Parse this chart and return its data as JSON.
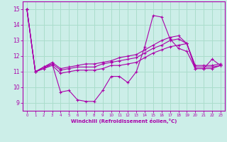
{
  "xlabel": "Windchill (Refroidissement éolien,°C)",
  "bg_color": "#cceee8",
  "grid_color": "#aaddcc",
  "line_color": "#aa00aa",
  "spine_color": "#aa00aa",
  "xlim": [
    -0.5,
    23.5
  ],
  "ylim": [
    8.5,
    15.5
  ],
  "yticks": [
    9,
    10,
    11,
    12,
    13,
    14,
    15
  ],
  "xticks": [
    0,
    1,
    2,
    3,
    4,
    5,
    6,
    7,
    8,
    9,
    10,
    11,
    12,
    13,
    14,
    15,
    16,
    17,
    18,
    19,
    20,
    21,
    22,
    23
  ],
  "series": [
    [
      15.0,
      11.0,
      11.2,
      11.5,
      9.7,
      9.8,
      9.2,
      9.1,
      9.1,
      9.8,
      10.7,
      10.7,
      10.3,
      11.0,
      12.6,
      14.6,
      14.5,
      13.1,
      12.5,
      12.3,
      11.2,
      11.2,
      11.8,
      11.4
    ],
    [
      15.0,
      11.0,
      11.2,
      11.4,
      10.9,
      11.0,
      11.1,
      11.1,
      11.1,
      11.2,
      11.4,
      11.4,
      11.5,
      11.6,
      11.9,
      12.2,
      12.4,
      12.6,
      12.7,
      12.8,
      11.2,
      11.2,
      11.2,
      11.4
    ],
    [
      15.0,
      11.0,
      11.3,
      11.5,
      11.1,
      11.2,
      11.3,
      11.3,
      11.3,
      11.5,
      11.6,
      11.7,
      11.8,
      11.9,
      12.2,
      12.5,
      12.7,
      13.0,
      13.1,
      12.8,
      11.3,
      11.3,
      11.3,
      11.4
    ],
    [
      15.0,
      11.0,
      11.3,
      11.6,
      11.2,
      11.3,
      11.4,
      11.5,
      11.5,
      11.6,
      11.7,
      11.9,
      12.0,
      12.1,
      12.4,
      12.7,
      13.0,
      13.2,
      13.3,
      12.8,
      11.4,
      11.4,
      11.4,
      11.5
    ]
  ]
}
